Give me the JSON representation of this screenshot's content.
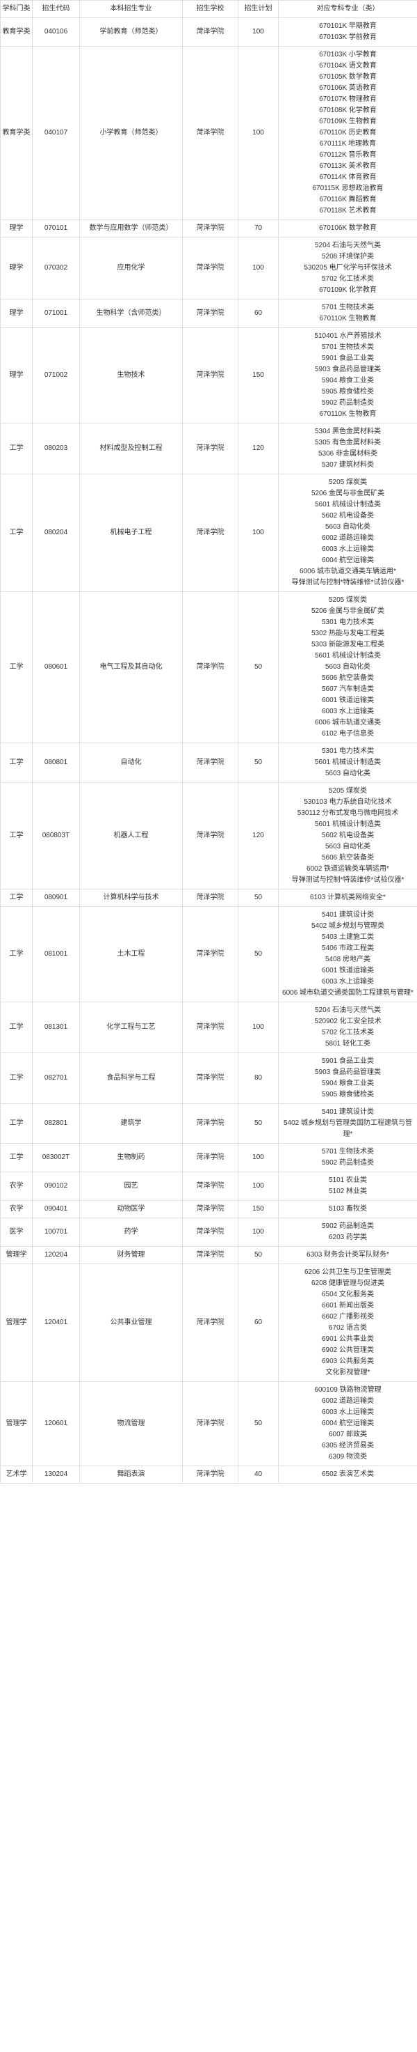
{
  "headers": [
    "学科门类",
    "招生代码",
    "本科招生专业",
    "招生学校",
    "招生计划",
    "对应专科专业（类）"
  ],
  "school": "菏泽学院",
  "rows": [
    {
      "cat": "教育学类",
      "code": "040106",
      "major": "学前教育（师范类）",
      "plan": "100",
      "list": [
        "670101K 早期教育",
        "670103K 学前教育"
      ]
    },
    {
      "cat": "教育学类",
      "code": "040107",
      "major": "小学教育（师范类）",
      "plan": "100",
      "list": [
        "670103K 小学教育",
        "670104K 语文教育",
        "670105K 数学教育",
        "670106K 英语教育",
        "670107K 物理教育",
        "670108K 化学教育",
        "670109K 生物教育",
        "670110K 历史教育",
        "670111K 地理教育",
        "670112K 音乐教育",
        "670113K 美术教育",
        "670114K 体育教育",
        "670115K 思想政治教育",
        "670116K 舞蹈教育",
        "670118K 艺术教育"
      ]
    },
    {
      "cat": "理学",
      "code": "070101",
      "major": "数学与应用数学（师范类）",
      "plan": "70",
      "list": [
        "670106K 数学教育"
      ]
    },
    {
      "cat": "理学",
      "code": "070302",
      "major": "应用化学",
      "plan": "100",
      "list": [
        "5204 石油与天然气类",
        "5208 环境保护类",
        "530205 电厂化学与环保技术",
        "5702 化工技术类",
        "670109K 化学教育"
      ]
    },
    {
      "cat": "理学",
      "code": "071001",
      "major": "生物科学（含师范类）",
      "plan": "60",
      "list": [
        "5701 生物技术类",
        "670110K 生物教育"
      ]
    },
    {
      "cat": "理学",
      "code": "071002",
      "major": "生物技术",
      "plan": "150",
      "list": [
        "510401 水产养殖技术",
        "5701 生物技术类",
        "5901 食品工业类",
        "5903 食品药品管理类",
        "5904 粮食工业类",
        "5905 粮食储检类",
        "5902 药品制造类",
        "670110K 生物教育"
      ]
    },
    {
      "cat": "工学",
      "code": "080203",
      "major": "材料成型及控制工程",
      "plan": "120",
      "list": [
        "5304 黑色金属材料类",
        "5305 有色金属材料类",
        "5306 非金属材料类",
        "5307 建筑材料类"
      ]
    },
    {
      "cat": "工学",
      "code": "080204",
      "major": "机械电子工程",
      "plan": "100",
      "list": [
        "5205 煤炭类",
        "5206 金属与非金属矿类",
        "5601 机械设计制造类",
        "5602 机电设备类",
        "5603 自动化类",
        "6002 道路运输类",
        "6003 水上运输类",
        "6004 航空运输类",
        "6006 城市轨道交通类车辆运用*",
        "导弹测试与控制*特装维修*试验仪器*"
      ]
    },
    {
      "cat": "工学",
      "code": "080601",
      "major": "电气工程及其自动化",
      "plan": "50",
      "list": [
        "5205 煤炭类",
        "5206 金属与非金属矿类",
        "5301 电力技术类",
        "5302 热能与发电工程类",
        "5303 新能源发电工程类",
        "5601 机械设计制造类",
        "5603 自动化类",
        "5606 航空装备类",
        "5607 汽车制造类",
        "6001 铁道运输类",
        "6003 水上运输类",
        "6006 城市轨道交通类",
        "6102 电子信息类"
      ]
    },
    {
      "cat": "工学",
      "code": "080801",
      "major": "自动化",
      "plan": "50",
      "list": [
        "5301 电力技术类",
        "5601 机械设计制造类",
        "5603 自动化类"
      ]
    },
    {
      "cat": "工学",
      "code": "080803T",
      "major": "机器人工程",
      "plan": "120",
      "list": [
        "5205 煤炭类",
        "530103 电力系统自动化技术",
        "530112 分布式发电与微电网技术",
        "5601 机械设计制造类",
        "5602 机电设备类",
        "5603 自动化类",
        "5606 航空装备类",
        "6002 铁道运输类车辆运用*",
        "导弹测试与控制*特装维修*试验仪器*"
      ]
    },
    {
      "cat": "工学",
      "code": "080901",
      "major": "计算机科学与技术",
      "plan": "50",
      "list": [
        "6103 计算机类网络安全*"
      ]
    },
    {
      "cat": "工学",
      "code": "081001",
      "major": "土木工程",
      "plan": "50",
      "list": [
        "5401 建筑设计类",
        "5402 城乡规划与管理类",
        "5403 土建施工类",
        "5406 市政工程类",
        "5408 房地产类",
        "6001 铁道运输类",
        "6003 水上运输类",
        "6006 城市轨道交通类国防工程建筑与管理*"
      ]
    },
    {
      "cat": "工学",
      "code": "081301",
      "major": "化学工程与工艺",
      "plan": "100",
      "list": [
        "5204 石油与天然气类",
        "520902 化工安全技术",
        "5702 化工技术类",
        "5801 轻化工类"
      ]
    },
    {
      "cat": "工学",
      "code": "082701",
      "major": "食品科学与工程",
      "plan": "80",
      "list": [
        "5901 食品工业类",
        "5903 食品药品管理类",
        "5904 粮食工业类",
        "5905 粮食储检类"
      ]
    },
    {
      "cat": "工学",
      "code": "082801",
      "major": "建筑学",
      "plan": "50",
      "list": [
        "5401 建筑设计类",
        "5402 城乡规划与管理类国防工程建筑与管理*"
      ]
    },
    {
      "cat": "工学",
      "code": "083002T",
      "major": "生物制药",
      "plan": "100",
      "list": [
        "5701 生物技术类",
        "5902 药品制造类"
      ]
    },
    {
      "cat": "农学",
      "code": "090102",
      "major": "园艺",
      "plan": "100",
      "list": [
        "5101 农业类",
        "5102 林业类"
      ]
    },
    {
      "cat": "农学",
      "code": "090401",
      "major": "动物医学",
      "plan": "150",
      "list": [
        "5103 畜牧类"
      ]
    },
    {
      "cat": "医学",
      "code": "100701",
      "major": "药学",
      "plan": "100",
      "list": [
        "5902 药品制造类",
        "6203 药学类"
      ]
    },
    {
      "cat": "管理学",
      "code": "120204",
      "major": "财务管理",
      "plan": "50",
      "list": [
        "6303 财务会计类军队财务*"
      ]
    },
    {
      "cat": "管理学",
      "code": "120401",
      "major": "公共事业管理",
      "plan": "60",
      "list": [
        "6206 公共卫生与卫生管理类",
        "6208 健康管理与促进类",
        "6504 文化服务类",
        "6601 新闻出版类",
        "6602 广播影视类",
        "6702 语言类",
        "6901 公共事业类",
        "6902 公共管理类",
        "6903 公共服务类",
        "文化影视管理*"
      ]
    },
    {
      "cat": "管理学",
      "code": "120601",
      "major": "物流管理",
      "plan": "50",
      "list": [
        "600109 铁路物流管理",
        "6002 道路运输类",
        "6003 水上运输类",
        "6004 航空运输类",
        "6007 邮政类",
        "6305 经济贸易类",
        "6309 物流类"
      ]
    },
    {
      "cat": "艺术学",
      "code": "130204",
      "major": "舞蹈表演",
      "plan": "40",
      "list": [
        "6502 表演艺术类"
      ]
    }
  ]
}
